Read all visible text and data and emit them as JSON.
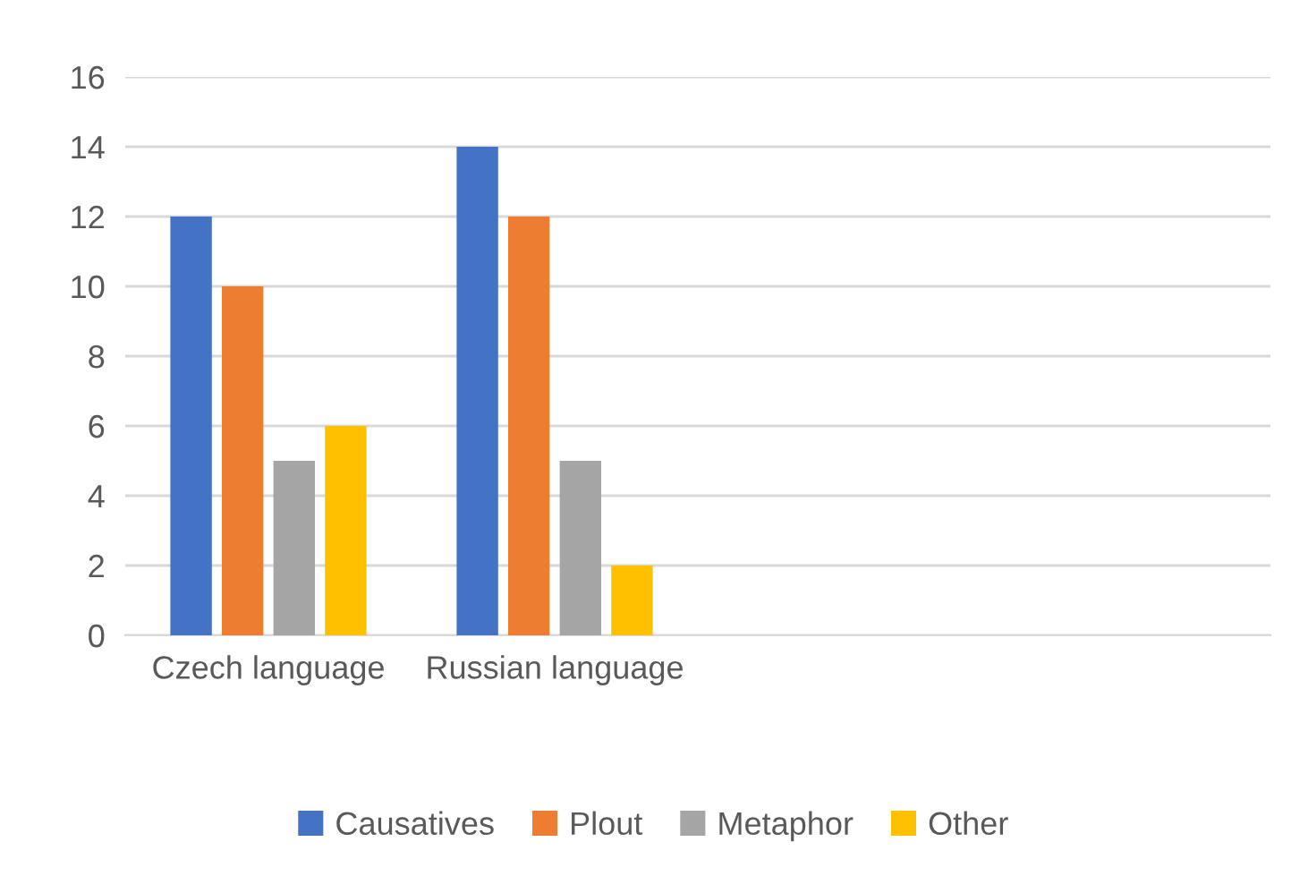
{
  "chart_data": {
    "type": "bar",
    "categories": [
      "Czech language",
      "Russian language",
      null,
      null
    ],
    "series": [
      {
        "name": "Causatives",
        "color": "#4472c4",
        "values": [
          12,
          14,
          null,
          null
        ]
      },
      {
        "name": "Plout",
        "color": "#ed7d31",
        "values": [
          10,
          12,
          null,
          null
        ]
      },
      {
        "name": "Metaphor",
        "color": "#a5a5a5",
        "values": [
          5,
          5,
          null,
          null
        ]
      },
      {
        "name": "Other",
        "color": "#ffc000",
        "values": [
          6,
          2,
          null,
          null
        ]
      }
    ],
    "ylim": [
      0,
      16
    ],
    "yticks": [
      0,
      2,
      4,
      6,
      8,
      10,
      12,
      14,
      16
    ],
    "grid": "y",
    "legend": "bottom"
  }
}
